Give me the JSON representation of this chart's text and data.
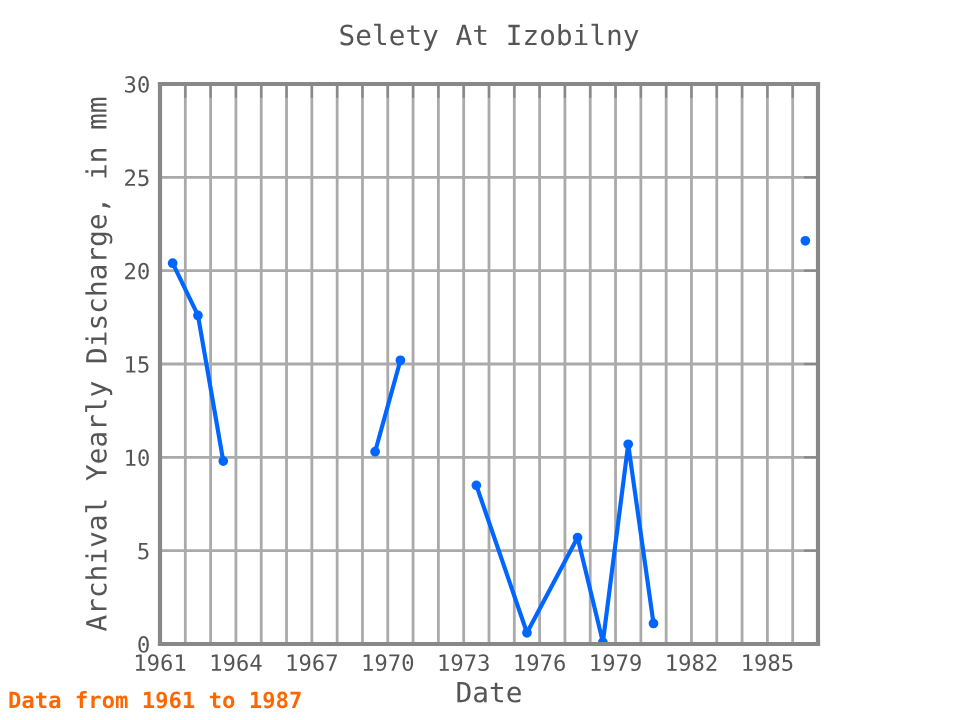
{
  "chart_data": {
    "type": "line",
    "title": "Selety At Izobilny",
    "xlabel": "Date",
    "ylabel": "Archival Yearly Discharge, in mm",
    "x": [
      1961.5,
      1962.5,
      1963.5,
      1964.5,
      1968.5,
      1969.5,
      1970.5,
      1971.5,
      1973.5,
      1975.5,
      1977.5,
      1978.5,
      1979.5,
      1980.5,
      1981.5,
      1986.5
    ],
    "series": [
      {
        "color": "#0066ff",
        "values": [
          20.4,
          17.6,
          9.8,
          null,
          null,
          10.3,
          15.2,
          null,
          8.5,
          0.6,
          5.7,
          0.1,
          10.7,
          1.1,
          null,
          21.6
        ]
      }
    ],
    "xlim": [
      1961,
      1987
    ],
    "ylim": [
      0,
      30
    ],
    "xticks": [
      1961,
      {
        "value": 1962,
        "label": null
      },
      {
        "value": 1963,
        "label": null
      },
      1964,
      {
        "value": 1965,
        "label": null
      },
      {
        "value": 1966,
        "label": null
      },
      1967,
      {
        "value": 1968,
        "label": null
      },
      {
        "value": 1969,
        "label": null
      },
      1970,
      {
        "value": 1971,
        "label": null
      },
      {
        "value": 1972,
        "label": null
      },
      1973,
      {
        "value": 1974,
        "label": null
      },
      {
        "value": 1975,
        "label": null
      },
      1976,
      {
        "value": 1977,
        "label": null
      },
      {
        "value": 1978,
        "label": null
      },
      1979,
      {
        "value": 1980,
        "label": null
      },
      {
        "value": 1981,
        "label": null
      },
      1982,
      {
        "value": 1983,
        "label": null
      },
      {
        "value": 1984,
        "label": null
      },
      1985,
      {
        "value": 1986,
        "label": null
      }
    ],
    "yticks": [
      0,
      5,
      10,
      15,
      20,
      25,
      30
    ],
    "grid": true,
    "marker": "circle",
    "line_style": "solid",
    "annotations": [
      "Data from 1961 to 1987"
    ]
  }
}
